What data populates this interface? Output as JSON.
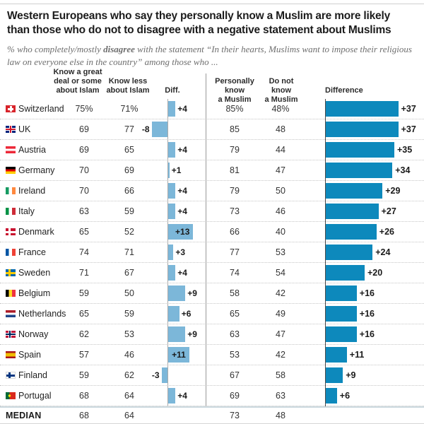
{
  "chart_data": {
    "type": "table",
    "title": "Western Europeans who say they personally know a Muslim are more likely\nthan those who do not to disagree with a negative statement about Muslims",
    "subtitle_prefix": "% who completely/mostly ",
    "subtitle_bold": "disagree",
    "subtitle_rest": " with the statement “In their hearts, Muslims want to impose their religious law on everyone else in the country” among those who ...",
    "columns": {
      "know_more": "Know a great\ndeal or some\nabout Islam",
      "know_less": "Know less\nabout Islam",
      "diff": "Diff.",
      "know_muslim": "Personally know\na Muslim",
      "not_know_muslim": "Do not know\na Muslim",
      "difference": "Difference"
    },
    "colors": {
      "bar_light": "#7cb7d9",
      "bar_dark": "#0d89bc"
    },
    "rows": [
      {
        "name": "Switzerland",
        "flag": "ch",
        "know_more": "75%",
        "know_less": "71%",
        "diff": 4,
        "diff_label": "+4",
        "know_muslim": "85%",
        "not_know_muslim": "48%",
        "difference": 37,
        "difference_label": "+37"
      },
      {
        "name": "UK",
        "flag": "uk",
        "know_more": "69",
        "know_less": "77",
        "diff": -8,
        "diff_label": "-8",
        "know_muslim": "85",
        "not_know_muslim": "48",
        "difference": 37,
        "difference_label": "+37"
      },
      {
        "name": "Austria",
        "flag": "at",
        "know_more": "69",
        "know_less": "65",
        "diff": 4,
        "diff_label": "+4",
        "know_muslim": "79",
        "not_know_muslim": "44",
        "difference": 35,
        "difference_label": "+35"
      },
      {
        "name": "Germany",
        "flag": "de",
        "know_more": "70",
        "know_less": "69",
        "diff": 1,
        "diff_label": "+1",
        "know_muslim": "81",
        "not_know_muslim": "47",
        "difference": 34,
        "difference_label": "+34"
      },
      {
        "name": "Ireland",
        "flag": "ie",
        "know_more": "70",
        "know_less": "66",
        "diff": 4,
        "diff_label": "+4",
        "know_muslim": "79",
        "not_know_muslim": "50",
        "difference": 29,
        "difference_label": "+29"
      },
      {
        "name": "Italy",
        "flag": "it",
        "know_more": "63",
        "know_less": "59",
        "diff": 4,
        "diff_label": "+4",
        "know_muslim": "73",
        "not_know_muslim": "46",
        "difference": 27,
        "difference_label": "+27"
      },
      {
        "name": "Denmark",
        "flag": "dk",
        "know_more": "65",
        "know_less": "52",
        "diff": 13,
        "diff_label": "+13",
        "know_muslim": "66",
        "not_know_muslim": "40",
        "difference": 26,
        "difference_label": "+26"
      },
      {
        "name": "France",
        "flag": "fr",
        "know_more": "74",
        "know_less": "71",
        "diff": 3,
        "diff_label": "+3",
        "know_muslim": "77",
        "not_know_muslim": "53",
        "difference": 24,
        "difference_label": "+24"
      },
      {
        "name": "Sweden",
        "flag": "se",
        "know_more": "71",
        "know_less": "67",
        "diff": 4,
        "diff_label": "+4",
        "know_muslim": "74",
        "not_know_muslim": "54",
        "difference": 20,
        "difference_label": "+20"
      },
      {
        "name": "Belgium",
        "flag": "be",
        "know_more": "59",
        "know_less": "50",
        "diff": 9,
        "diff_label": "+9",
        "know_muslim": "58",
        "not_know_muslim": "42",
        "difference": 16,
        "difference_label": "+16"
      },
      {
        "name": "Netherlands",
        "flag": "nl",
        "know_more": "65",
        "know_less": "59",
        "diff": 6,
        "diff_label": "+6",
        "know_muslim": "65",
        "not_know_muslim": "49",
        "difference": 16,
        "difference_label": "+16"
      },
      {
        "name": "Norway",
        "flag": "no",
        "know_more": "62",
        "know_less": "53",
        "diff": 9,
        "diff_label": "+9",
        "know_muslim": "63",
        "not_know_muslim": "47",
        "difference": 16,
        "difference_label": "+16"
      },
      {
        "name": "Spain",
        "flag": "es",
        "know_more": "57",
        "know_less": "46",
        "diff": 11,
        "diff_label": "+11",
        "know_muslim": "53",
        "not_know_muslim": "42",
        "difference": 11,
        "difference_label": "+11"
      },
      {
        "name": "Finland",
        "flag": "fi",
        "know_more": "59",
        "know_less": "62",
        "diff": -3,
        "diff_label": "-3",
        "know_muslim": "67",
        "not_know_muslim": "58",
        "difference": 9,
        "difference_label": "+9"
      },
      {
        "name": "Portugal",
        "flag": "pt",
        "know_more": "68",
        "know_less": "64",
        "diff": 4,
        "diff_label": "+4",
        "know_muslim": "69",
        "not_know_muslim": "63",
        "difference": 6,
        "difference_label": "+6"
      }
    ],
    "median": {
      "label": "MEDIAN",
      "know_more": "68",
      "know_less": "64",
      "know_muslim": "73",
      "not_know_muslim": "48"
    }
  }
}
